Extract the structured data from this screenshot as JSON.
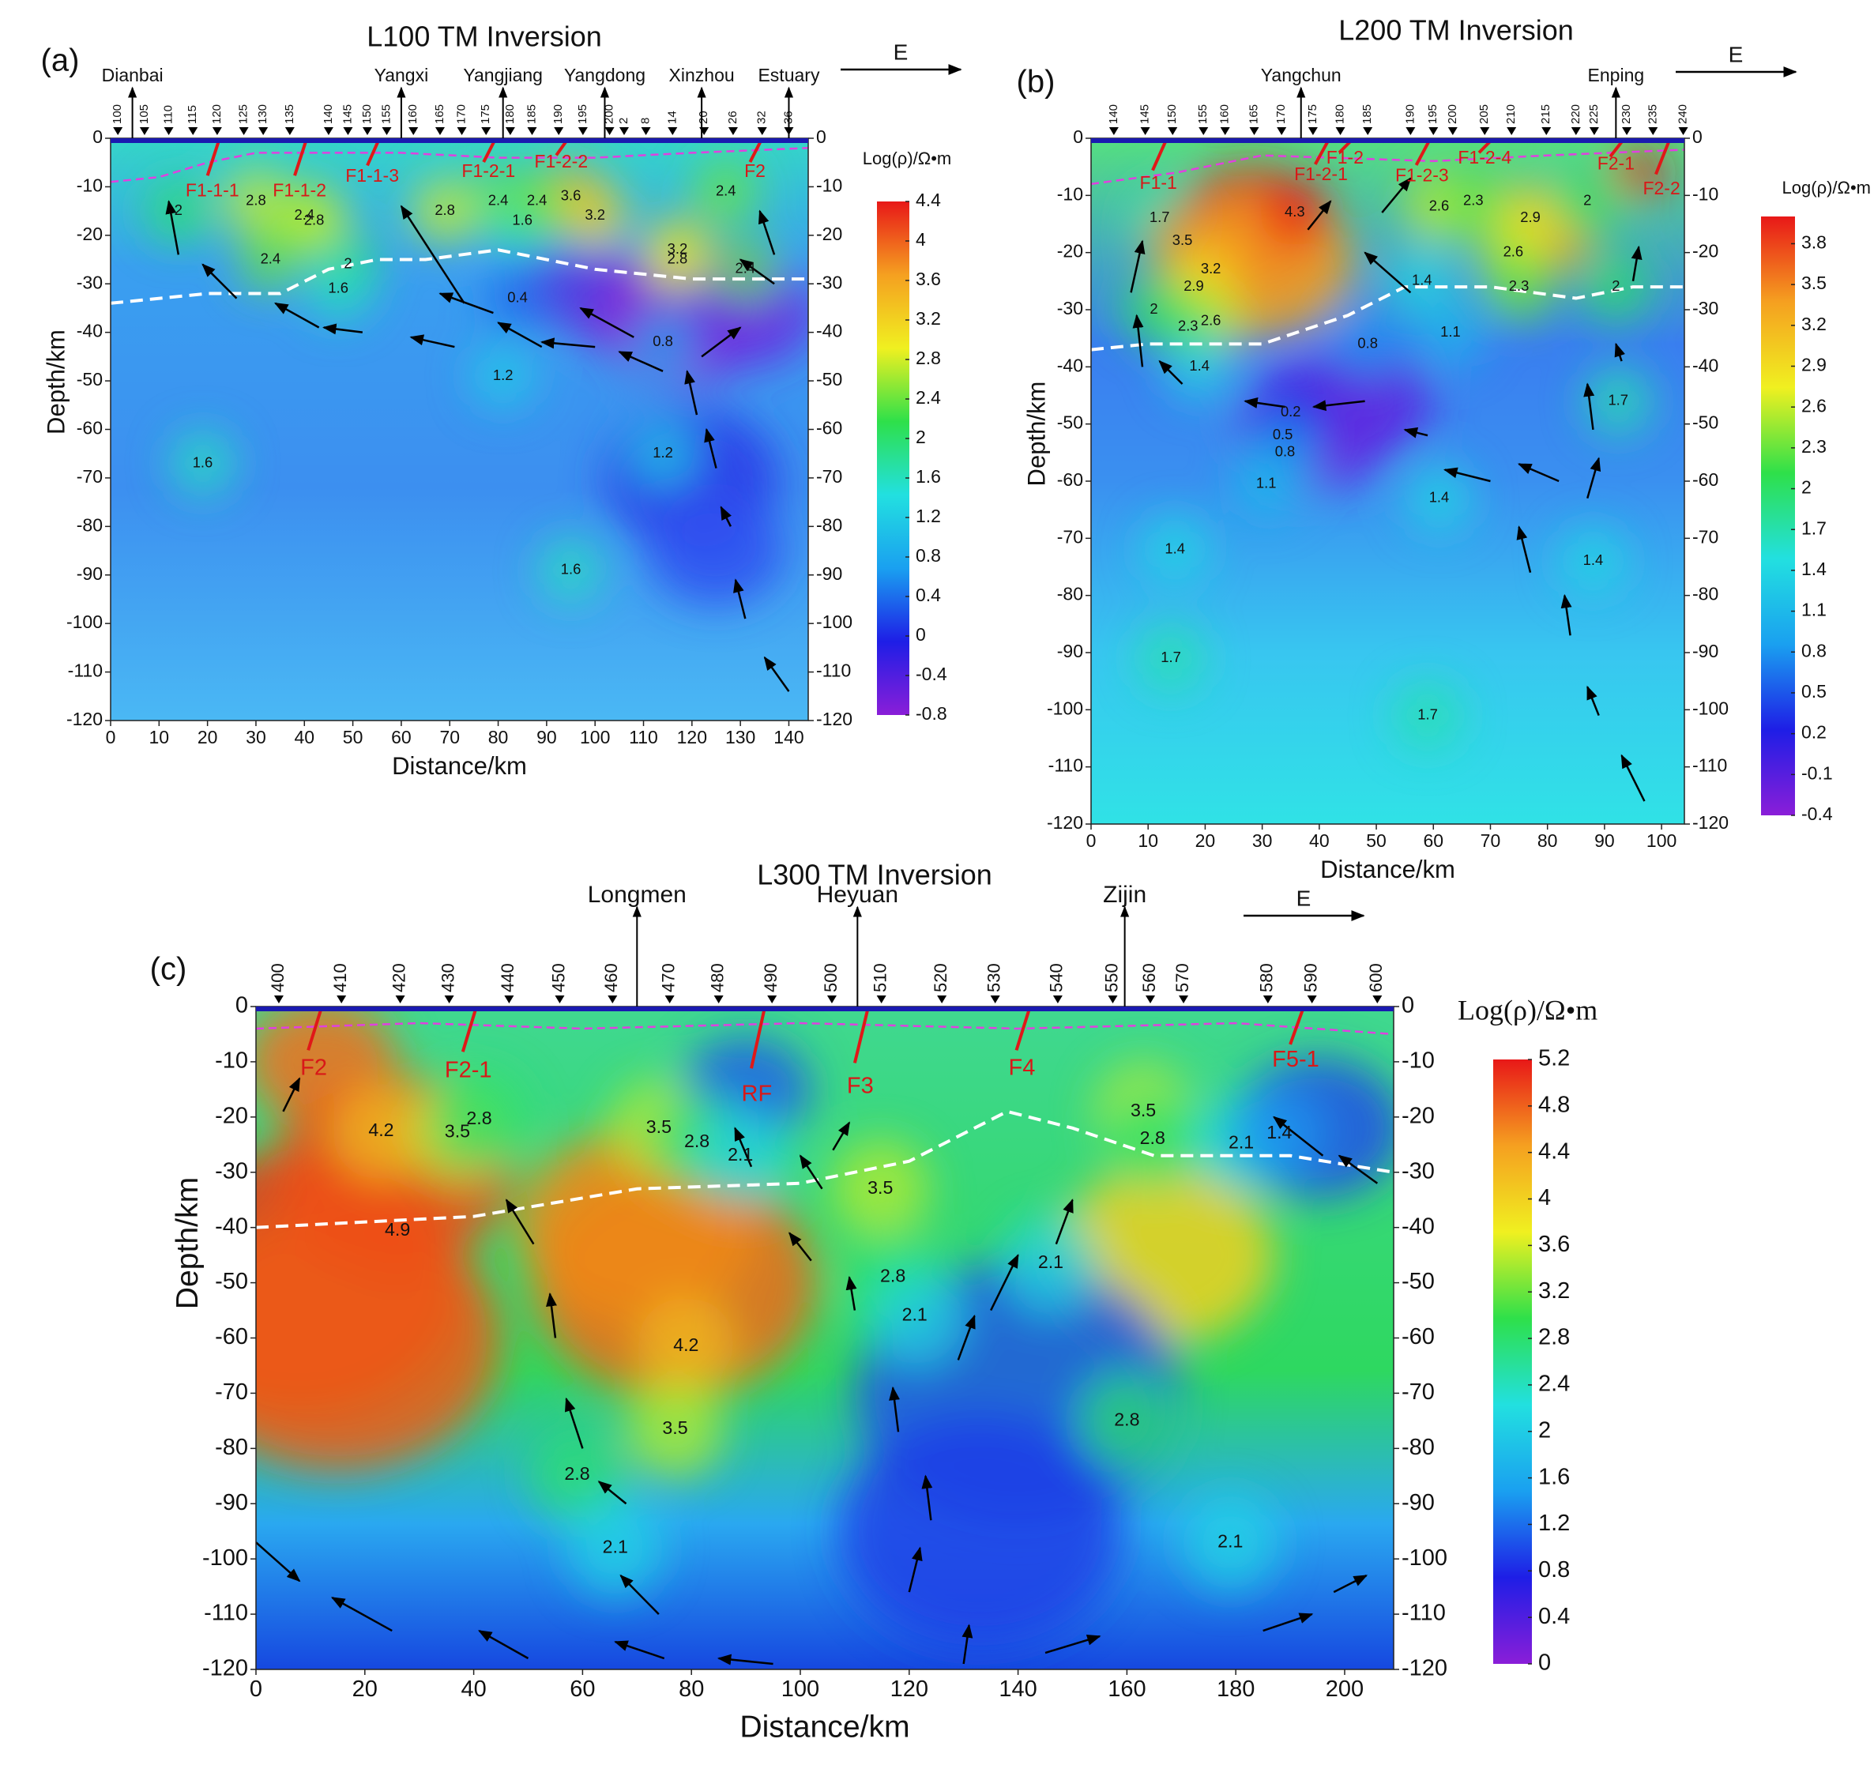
{
  "chart_data": [
    {
      "type": "contour",
      "panel_label": "(a)",
      "title": "L100 TM Inversion",
      "x_label": "Distance/km",
      "y_label": "Depth/km",
      "colorbar_label": "Log(ρ)/Ω•m",
      "direction": "E",
      "xlim": [
        0,
        144
      ],
      "xticks": [
        0,
        10,
        20,
        30,
        40,
        50,
        60,
        70,
        80,
        90,
        100,
        110,
        120,
        130,
        140
      ],
      "ylim": [
        -120,
        0
      ],
      "yticks": [
        0,
        -10,
        -20,
        -30,
        -40,
        -50,
        -60,
        -70,
        -80,
        -90,
        -100,
        -110,
        -120
      ],
      "clim": [
        -0.8,
        4.4
      ],
      "cticks": [
        4.4,
        4,
        3.6,
        3.2,
        2.8,
        2.4,
        2,
        1.6,
        1.2,
        0.8,
        0.4,
        0,
        -0.4,
        -0.8
      ],
      "colormap": [
        "#8a1ed8",
        "#1e1ee6",
        "#1aa0f0",
        "#22e0e0",
        "#2ee04a",
        "#f0f020",
        "#f5a020",
        "#e81818"
      ],
      "places": [
        {
          "name": "Dianbai",
          "x": 4.5
        },
        {
          "name": "Yangxi",
          "x": 60
        },
        {
          "name": "Yangjiang",
          "x": 81
        },
        {
          "name": "Yangdong",
          "x": 102
        },
        {
          "name": "Xinzhou",
          "x": 122
        },
        {
          "name": "Estuary",
          "x": 140
        }
      ],
      "stations": [
        {
          "label": 100,
          "x": 1.5
        },
        {
          "label": 105,
          "x": 7
        },
        {
          "label": 110,
          "x": 12
        },
        {
          "label": 115,
          "x": 17
        },
        {
          "label": 120,
          "x": 22
        },
        {
          "label": 125,
          "x": 27.5
        },
        {
          "label": 130,
          "x": 31.5
        },
        {
          "label": 135,
          "x": 37
        },
        {
          "label": 140,
          "x": 45
        },
        {
          "label": 145,
          "x": 49
        },
        {
          "label": 150,
          "x": 53
        },
        {
          "label": 155,
          "x": 57
        },
        {
          "label": 160,
          "x": 62.5
        },
        {
          "label": 165,
          "x": 68
        },
        {
          "label": 170,
          "x": 72.5
        },
        {
          "label": 175,
          "x": 77.5
        },
        {
          "label": 180,
          "x": 82.5
        },
        {
          "label": 185,
          "x": 87
        },
        {
          "label": 190,
          "x": 92.5
        },
        {
          "label": 195,
          "x": 97.5
        },
        {
          "label": 200,
          "x": 103
        },
        {
          "label": 2,
          "x": 106
        },
        {
          "label": 8,
          "x": 110.5
        },
        {
          "label": 14,
          "x": 116
        },
        {
          "label": 20,
          "x": 122.5
        },
        {
          "label": 26,
          "x": 128.5
        },
        {
          "label": 32,
          "x": 134.5
        },
        {
          "label": 36,
          "x": 140
        }
      ],
      "faults": [
        {
          "label": "F1-1-1",
          "x": 21,
          "depth": -11
        },
        {
          "label": "F1-1-2",
          "x": 39,
          "depth": -11
        },
        {
          "label": "F1-1-3",
          "x": 54,
          "depth": -8
        },
        {
          "label": "F1-2-1",
          "x": 78,
          "depth": -7
        },
        {
          "label": "F1-2-2",
          "x": 93,
          "depth": -5
        },
        {
          "label": "F2",
          "x": 133,
          "depth": -7
        }
      ],
      "contour_labels": [
        {
          "value": 2,
          "x": 14,
          "depth": -15
        },
        {
          "value": 2.8,
          "x": 30,
          "depth": -13
        },
        {
          "value": 2.4,
          "x": 40,
          "depth": -16
        },
        {
          "value": 2.8,
          "x": 42,
          "depth": -17
        },
        {
          "value": 2.4,
          "x": 33,
          "depth": -25
        },
        {
          "value": 2,
          "x": 49,
          "depth": -26
        },
        {
          "value": 1.6,
          "x": 47,
          "depth": -31
        },
        {
          "value": 1.2,
          "x": 81,
          "depth": -49
        },
        {
          "value": 1.6,
          "x": 19,
          "depth": -67
        },
        {
          "value": 1.6,
          "x": 95,
          "depth": -89
        },
        {
          "value": 1.2,
          "x": 114,
          "depth": -65
        },
        {
          "value": 3.6,
          "x": 95,
          "depth": -12
        },
        {
          "value": 3.2,
          "x": 100,
          "depth": -16
        },
        {
          "value": 3.2,
          "x": 117,
          "depth": -23
        },
        {
          "value": 2.8,
          "x": 117,
          "depth": -25
        },
        {
          "value": 2.8,
          "x": 69,
          "depth": -15
        },
        {
          "value": 2.4,
          "x": 80,
          "depth": -13
        },
        {
          "value": 1.6,
          "x": 85,
          "depth": -17
        },
        {
          "value": 2.4,
          "x": 88,
          "depth": -13
        },
        {
          "value": 0.4,
          "x": 84,
          "depth": -33
        },
        {
          "value": 0.8,
          "x": 114,
          "depth": -42
        },
        {
          "value": 2.4,
          "x": 127,
          "depth": -11
        },
        {
          "value": 2.4,
          "x": 131,
          "depth": -27
        }
      ]
    },
    {
      "type": "contour",
      "panel_label": "(b)",
      "title": "L200 TM Inversion",
      "x_label": "Distance/km",
      "y_label": "Depth/km",
      "colorbar_label": "Log(ρ)/Ω•m",
      "direction": "E",
      "xlim": [
        0,
        104
      ],
      "xticks": [
        0,
        10,
        20,
        30,
        40,
        50,
        60,
        70,
        80,
        90,
        100
      ],
      "ylim": [
        -120,
        0
      ],
      "yticks": [
        0,
        -10,
        -20,
        -30,
        -40,
        -50,
        -60,
        -70,
        -80,
        -90,
        -100,
        -110,
        -120
      ],
      "clim": [
        -0.4,
        4.0
      ],
      "cticks": [
        3.8,
        3.5,
        3.2,
        2.9,
        2.6,
        2.3,
        2,
        1.7,
        1.4,
        1.1,
        0.8,
        0.5,
        0.2,
        -0.1,
        -0.4
      ],
      "colormap": [
        "#8a1ed8",
        "#1e1ee6",
        "#1aa0f0",
        "#22e0e0",
        "#2ee04a",
        "#f0f020",
        "#f5a020",
        "#e81818"
      ],
      "places": [
        {
          "name": "Yangchun",
          "x": 36.8
        },
        {
          "name": "Enping",
          "x": 92
        }
      ],
      "stations": [
        {
          "label": 140,
          "x": 4
        },
        {
          "label": 145,
          "x": 9.5
        },
        {
          "label": 150,
          "x": 14.3
        },
        {
          "label": 155,
          "x": 19.7
        },
        {
          "label": 160,
          "x": 23.5
        },
        {
          "label": 165,
          "x": 28.6
        },
        {
          "label": 170,
          "x": 33.4
        },
        {
          "label": 175,
          "x": 38.9
        },
        {
          "label": 180,
          "x": 43.7
        },
        {
          "label": 185,
          "x": 48.5
        },
        {
          "label": 190,
          "x": 56
        },
        {
          "label": 195,
          "x": 60
        },
        {
          "label": 200,
          "x": 63.4
        },
        {
          "label": 205,
          "x": 69
        },
        {
          "label": 210,
          "x": 73.7
        },
        {
          "label": 215,
          "x": 79.8
        },
        {
          "label": 220,
          "x": 85
        },
        {
          "label": 225,
          "x": 88.2
        },
        {
          "label": 230,
          "x": 93.9
        },
        {
          "label": 235,
          "x": 98.5
        },
        {
          "label": 240,
          "x": 103.8
        }
      ],
      "faults": [
        {
          "label": "F1-1",
          "x": 11.8,
          "depth": -8
        },
        {
          "label": "F1-2",
          "x": 44.5,
          "depth": -3.6
        },
        {
          "label": "F1-2-1",
          "x": 40.3,
          "depth": -6.5
        },
        {
          "label": "F1-2-3",
          "x": 58,
          "depth": -6.7
        },
        {
          "label": "F1-2-4",
          "x": 69,
          "depth": -3.6
        },
        {
          "label": "F2-1",
          "x": 92,
          "depth": -4.6
        },
        {
          "label": "F2-2",
          "x": 100,
          "depth": -9
        }
      ],
      "contour_labels": [
        {
          "value": 4.3,
          "x": 35.7,
          "depth": -13
        },
        {
          "value": 1.7,
          "x": 12,
          "depth": -14
        },
        {
          "value": 3.5,
          "x": 16,
          "depth": -18
        },
        {
          "value": 3.2,
          "x": 21,
          "depth": -23
        },
        {
          "value": 2.9,
          "x": 18,
          "depth": -26
        },
        {
          "value": 2.6,
          "x": 21,
          "depth": -32
        },
        {
          "value": 2.3,
          "x": 17,
          "depth": -33
        },
        {
          "value": 2,
          "x": 11,
          "depth": -30
        },
        {
          "value": 1.4,
          "x": 19,
          "depth": -40
        },
        {
          "value": 2.6,
          "x": 61,
          "depth": -12
        },
        {
          "value": 2.3,
          "x": 67,
          "depth": -11
        },
        {
          "value": 2.9,
          "x": 77,
          "depth": -14
        },
        {
          "value": 2.6,
          "x": 74,
          "depth": -20
        },
        {
          "value": 2.3,
          "x": 75,
          "depth": -26
        },
        {
          "value": 2,
          "x": 87,
          "depth": -11
        },
        {
          "value": 1.4,
          "x": 58,
          "depth": -25
        },
        {
          "value": 1.1,
          "x": 63,
          "depth": -34
        },
        {
          "value": 0.8,
          "x": 48.5,
          "depth": -36
        },
        {
          "value": 0.2,
          "x": 35,
          "depth": -48
        },
        {
          "value": 0.5,
          "x": 33.6,
          "depth": -52
        },
        {
          "value": 0.8,
          "x": 34,
          "depth": -55
        },
        {
          "value": 1.1,
          "x": 30.7,
          "depth": -60.5
        },
        {
          "value": 1.4,
          "x": 61,
          "depth": -63
        },
        {
          "value": 1.4,
          "x": 14.7,
          "depth": -72
        },
        {
          "value": 1.7,
          "x": 14,
          "depth": -91
        },
        {
          "value": 1.7,
          "x": 59,
          "depth": -101
        },
        {
          "value": 1.4,
          "x": 88,
          "depth": -74
        },
        {
          "value": 1.7,
          "x": 92.4,
          "depth": -46
        },
        {
          "value": 2,
          "x": 92,
          "depth": -26
        }
      ]
    },
    {
      "type": "contour",
      "panel_label": "(c)",
      "title": "L300 TM Inversion",
      "x_label": "Distance/km",
      "y_label": "Depth/km",
      "colorbar_label": "Log(ρ)/Ω•m",
      "direction": "E",
      "xlim": [
        0,
        209
      ],
      "xticks": [
        0,
        20,
        40,
        60,
        80,
        100,
        120,
        140,
        160,
        180,
        200
      ],
      "ylim": [
        -120,
        0
      ],
      "yticks": [
        0,
        -10,
        -20,
        -30,
        -40,
        -50,
        -60,
        -70,
        -80,
        -90,
        -100,
        -110,
        -120
      ],
      "clim": [
        0,
        5.2
      ],
      "cticks": [
        5.2,
        4.8,
        4.4,
        4,
        3.6,
        3.2,
        2.8,
        2.4,
        2,
        1.6,
        1.2,
        0.8,
        0.4,
        0
      ],
      "colormap": [
        "#8a1ed8",
        "#1e1ee6",
        "#1aa0f0",
        "#22e0e0",
        "#2ee04a",
        "#f0f020",
        "#f5a020",
        "#e81818"
      ],
      "places": [
        {
          "name": "Longmen",
          "x": 70
        },
        {
          "name": "Heyuan",
          "x": 110.5
        },
        {
          "name": "Zijin",
          "x": 159.6
        }
      ],
      "stations": [
        {
          "label": 400,
          "x": 4.2
        },
        {
          "label": 410,
          "x": 15.7
        },
        {
          "label": 420,
          "x": 26.5
        },
        {
          "label": 430,
          "x": 35.5
        },
        {
          "label": 440,
          "x": 46.5
        },
        {
          "label": 450,
          "x": 55.8
        },
        {
          "label": 460,
          "x": 65.5
        },
        {
          "label": 470,
          "x": 76
        },
        {
          "label": 480,
          "x": 85
        },
        {
          "label": 490,
          "x": 94.8
        },
        {
          "label": 500,
          "x": 105.8
        },
        {
          "label": 510,
          "x": 114.9
        },
        {
          "label": 520,
          "x": 126
        },
        {
          "label": 530,
          "x": 135.8
        },
        {
          "label": 540,
          "x": 147.3
        },
        {
          "label": 550,
          "x": 157.4
        },
        {
          "label": 560,
          "x": 164.3
        },
        {
          "label": 570,
          "x": 170.4
        },
        {
          "label": 580,
          "x": 185.9
        },
        {
          "label": 590,
          "x": 194
        },
        {
          "label": 600,
          "x": 206
        }
      ],
      "faults": [
        {
          "label": "F2",
          "x": 10.6,
          "depth": -11.3
        },
        {
          "label": "F2-1",
          "x": 39,
          "depth": -11.7
        },
        {
          "label": "RF",
          "x": 92,
          "depth": -16
        },
        {
          "label": "F3",
          "x": 111,
          "depth": -14.6
        },
        {
          "label": "F4",
          "x": 140.7,
          "depth": -11.3
        },
        {
          "label": "F5-1",
          "x": 191,
          "depth": -9.8
        }
      ],
      "contour_labels": [
        {
          "value": 4.2,
          "x": 23,
          "depth": -22.6
        },
        {
          "value": 4.9,
          "x": 26,
          "depth": -40.6
        },
        {
          "value": 3.5,
          "x": 37,
          "depth": -22.8
        },
        {
          "value": 2.8,
          "x": 41,
          "depth": -20.4
        },
        {
          "value": 3.5,
          "x": 74,
          "depth": -22
        },
        {
          "value": 2.8,
          "x": 81,
          "depth": -24.6
        },
        {
          "value": 2.1,
          "x": 89,
          "depth": -27
        },
        {
          "value": 4.2,
          "x": 79,
          "depth": -61.5
        },
        {
          "value": 3.5,
          "x": 77,
          "depth": -76.5
        },
        {
          "value": 2.8,
          "x": 59,
          "depth": -84.8
        },
        {
          "value": 2.1,
          "x": 66,
          "depth": -98
        },
        {
          "value": 3.5,
          "x": 114.7,
          "depth": -33
        },
        {
          "value": 2.8,
          "x": 117,
          "depth": -49
        },
        {
          "value": 2.1,
          "x": 121,
          "depth": -56
        },
        {
          "value": 2.1,
          "x": 146,
          "depth": -46.5
        },
        {
          "value": 3.5,
          "x": 163,
          "depth": -19
        },
        {
          "value": 2.8,
          "x": 164.7,
          "depth": -24
        },
        {
          "value": 2.1,
          "x": 181,
          "depth": -24.8
        },
        {
          "value": 1.4,
          "x": 188,
          "depth": -23
        },
        {
          "value": 2.8,
          "x": 160,
          "depth": -75
        },
        {
          "value": 2.1,
          "x": 179,
          "depth": -97
        }
      ]
    }
  ]
}
